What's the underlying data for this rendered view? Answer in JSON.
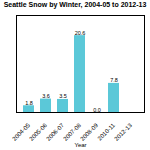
{
  "chart_data": {
    "type": "bar",
    "title": "Seattle Snow by Winter, 2004-05 to 2012-13",
    "xlabel": "Year",
    "categories": [
      "2004-05",
      "2005-06",
      "2006-07",
      "2007-08",
      "2008-09",
      "2010-11",
      "2012-13"
    ],
    "values": [
      1.8,
      3.6,
      3.5,
      20.6,
      0.0,
      7.8,
      0.0
    ],
    "value_labels": [
      "1.8",
      "3.6",
      "3.5",
      "20.6",
      "0.0",
      "7.8",
      null
    ],
    "color": "#5BC8D8",
    "ylim": [
      0,
      26
    ],
    "grid": false,
    "data_labels": true,
    "tick_labels": "x"
  }
}
